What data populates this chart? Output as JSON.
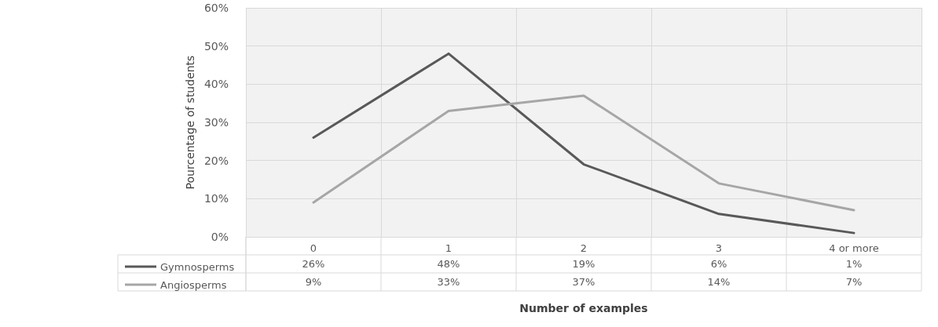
{
  "chart_data": {
    "type": "line",
    "xlabel": "Number of examples",
    "ylabel": "Pourcentage of students",
    "categories": [
      "0",
      "1",
      "2",
      "3",
      "4 or more"
    ],
    "series": [
      {
        "name": "Gymnosperms",
        "color": "#595959",
        "values": [
          26,
          48,
          19,
          6,
          1
        ],
        "value_labels": [
          "26%",
          "48%",
          "19%",
          "6%",
          "1%"
        ]
      },
      {
        "name": "Angiosperms",
        "color": "#a6a6a6",
        "values": [
          9,
          33,
          37,
          14,
          7
        ],
        "value_labels": [
          "9%",
          "33%",
          "37%",
          "14%",
          "7%"
        ]
      }
    ],
    "ylim": [
      0,
      60
    ],
    "yticks": [
      {
        "value": 0,
        "label": "0%"
      },
      {
        "value": 10,
        "label": "10%"
      },
      {
        "value": 20,
        "label": "20%"
      },
      {
        "value": 30,
        "label": "30%"
      },
      {
        "value": 40,
        "label": "40%"
      },
      {
        "value": 50,
        "label": "50%"
      },
      {
        "value": 60,
        "label": "60%"
      }
    ],
    "grid": true,
    "legend": "bottom left",
    "marker": "none",
    "line_style": "solid"
  }
}
